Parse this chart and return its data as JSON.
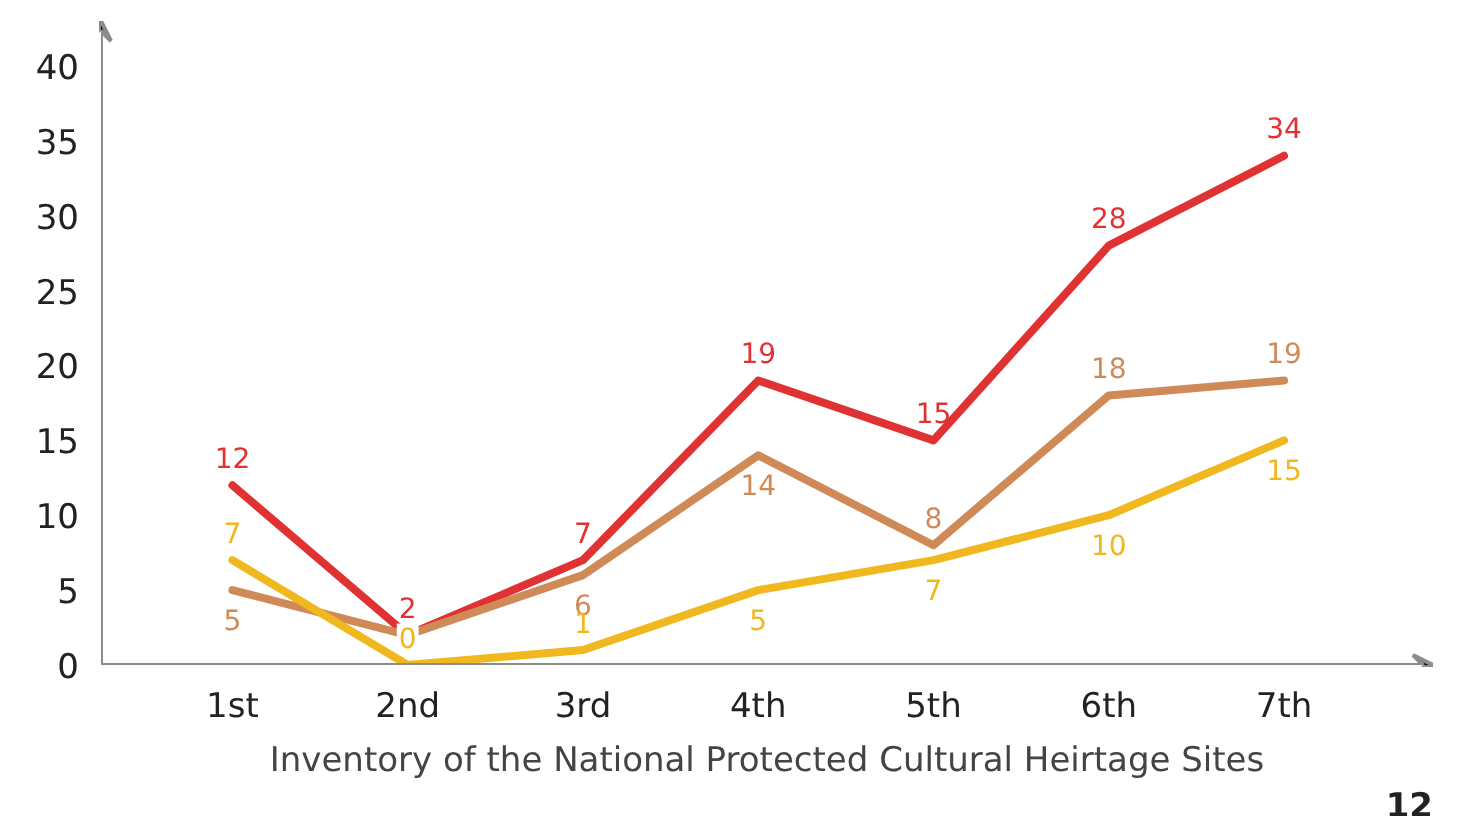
{
  "chart_data": {
    "type": "line",
    "categories": [
      "1st",
      "2nd",
      "3rd",
      "4th",
      "5th",
      "6th",
      "7th"
    ],
    "xlabel": "Inventory of the National Protected Cultural Heirtage Sites",
    "series": [
      {
        "color": "#e03232",
        "values": [
          12,
          2,
          7,
          19,
          15,
          28,
          34
        ],
        "value_labels": [
          "12",
          "2",
          "7",
          "19",
          "15",
          "28",
          "34"
        ]
      },
      {
        "color": "#d08a58",
        "values": [
          5,
          2,
          6,
          14,
          8,
          18,
          19
        ],
        "value_labels": [
          "5",
          null,
          "6",
          "14",
          "8",
          "18",
          "19"
        ]
      },
      {
        "color": "#f0b81e",
        "values": [
          7,
          0,
          1,
          5,
          7,
          10,
          15
        ],
        "value_labels": [
          "7",
          "0",
          "1",
          "5",
          "7",
          "10",
          "15"
        ]
      }
    ],
    "ylim": [
      0,
      43
    ],
    "yticks": [
      0,
      5,
      10,
      15,
      20,
      25,
      30,
      35,
      40
    ],
    "grid": false,
    "annotations": [
      "12"
    ]
  }
}
